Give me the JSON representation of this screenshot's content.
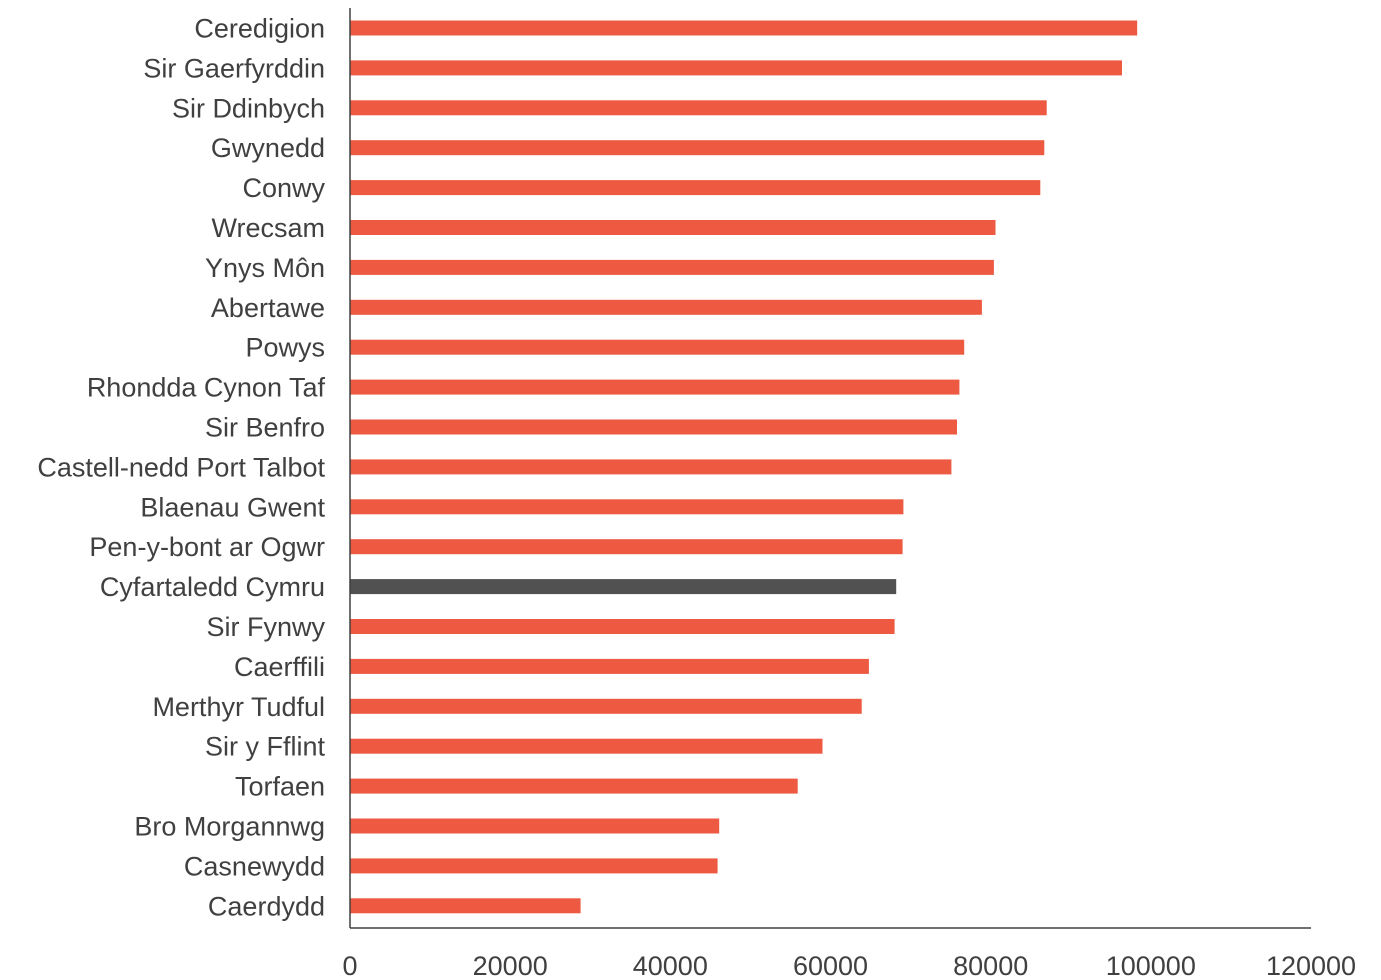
{
  "chart_data": {
    "type": "bar",
    "orientation": "horizontal",
    "categories": [
      "Ceredigion",
      "Sir Gaerfyrddin",
      "Sir Ddinbych",
      "Gwynedd",
      "Conwy",
      "Wrecsam",
      "Ynys Môn",
      "Abertawe",
      "Powys",
      "Rhondda Cynon Taf",
      "Sir Benfro",
      "Castell-nedd Port Talbot",
      "Blaenau Gwent",
      "Pen-y-bont ar Ogwr",
      "Cyfartaledd Cymru",
      "Sir Fynwy",
      "Caerffili",
      "Merthyr Tudful",
      "Sir y Fflint",
      "Torfaen",
      "Bro Morgannwg",
      "Casnewydd",
      "Caerdydd"
    ],
    "values": [
      98300,
      96400,
      87000,
      86700,
      86200,
      80600,
      80400,
      78900,
      76700,
      76100,
      75800,
      75100,
      69100,
      69000,
      68200,
      68000,
      64800,
      63900,
      59000,
      55900,
      46100,
      45900,
      28800
    ],
    "highlight_category": "Cyfartaledd Cymru",
    "colors": {
      "bar": "#ed5a41",
      "highlight": "#515151",
      "axis": "#404040",
      "text": "#404040"
    },
    "xlim": [
      0,
      120000
    ],
    "xticks": [
      "0",
      "20000",
      "40000",
      "60000",
      "80000",
      "100000",
      "120000"
    ],
    "title": "",
    "xlabel": "",
    "ylabel": "",
    "grid": false,
    "legend": false
  }
}
